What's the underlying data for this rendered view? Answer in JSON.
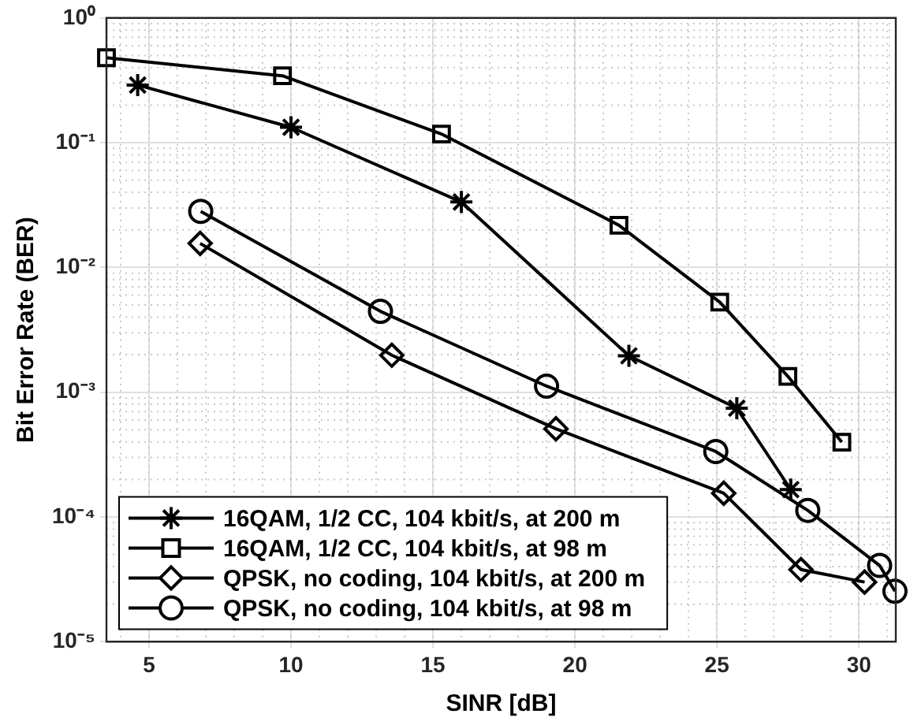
{
  "chart_data": {
    "type": "line",
    "xlabel": "SINR [dB]",
    "ylabel": "Bit Error Rate (BER)",
    "log": "y",
    "grid": true,
    "legend": "bottom left",
    "line_style": "solid",
    "xlim": [
      3.5,
      31.3
    ],
    "xticks": [
      5,
      10,
      15,
      20,
      25,
      30
    ],
    "ylim": [
      1e-05,
      1
    ],
    "yticks": [
      {
        "value": 1e-05,
        "label": "10⁻⁵"
      },
      {
        "value": 0.0001,
        "label": "10⁻⁴"
      },
      {
        "value": 0.001,
        "label": "10⁻³"
      },
      {
        "value": 0.01,
        "label": "10⁻²"
      },
      {
        "value": 0.1,
        "label": "10⁻¹"
      },
      {
        "value": 1,
        "label": "10⁰"
      }
    ],
    "series": [
      {
        "name": "16QAM, 1/2 CC, 104 kbit/s, at 200 m",
        "color": "#000000",
        "marker": "cross",
        "x": [
          4.6,
          10.0,
          16.0,
          21.9,
          25.7,
          27.6
        ],
        "values": [
          0.29,
          0.133,
          0.0335,
          0.00196,
          0.000745,
          0.000166
        ]
      },
      {
        "name": "16QAM, 1/2 CC, 104 kbit/s, at 98 m",
        "color": "#000000",
        "marker": "square",
        "x": [
          3.5,
          9.7,
          15.3,
          21.55,
          25.1,
          27.5,
          29.4
        ],
        "values": [
          0.48,
          0.344,
          0.1175,
          0.0218,
          0.00528,
          0.00134,
          0.000398
        ]
      },
      {
        "name": "QPSK, no coding, 104 kbit/s, at 200 m",
        "color": "#000000",
        "marker": "diamond",
        "x": [
          6.8,
          13.55,
          19.33,
          25.24,
          27.96,
          30.2
        ],
        "values": [
          0.0156,
          0.00198,
          0.000509,
          0.000155,
          3.79e-05,
          3.01e-05
        ]
      },
      {
        "name": "QPSK, no coding, 104 kbit/s, at 98 m",
        "color": "#000000",
        "marker": "circle",
        "x": [
          6.82,
          13.15,
          19.0,
          24.96,
          28.2,
          30.73,
          31.27
        ],
        "values": [
          0.0282,
          0.00445,
          0.00112,
          0.000335,
          0.000113,
          4.09e-05,
          2.54e-05
        ]
      }
    ]
  }
}
